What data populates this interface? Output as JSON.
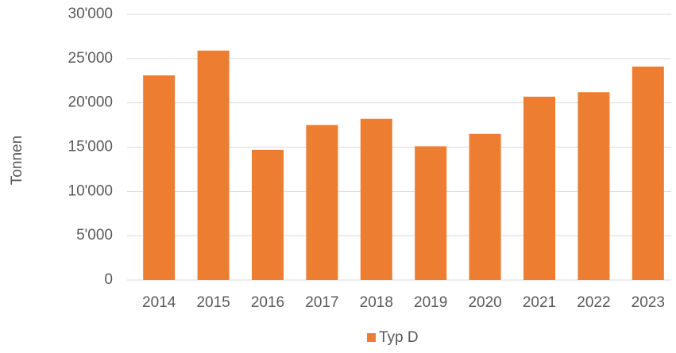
{
  "chart_data": {
    "type": "bar",
    "y_label": "Tonnen",
    "categories": [
      "2014",
      "2015",
      "2016",
      "2017",
      "2018",
      "2019",
      "2020",
      "2021",
      "2022",
      "2023"
    ],
    "series": [
      {
        "name": "Typ D",
        "color": "#ed7d31",
        "values": [
          23100,
          25900,
          14700,
          17500,
          18200,
          15100,
          16500,
          20700,
          21200,
          24100
        ]
      }
    ],
    "ylim": [
      0,
      30000
    ],
    "yticks": [
      0,
      {
        "value": 5000,
        "label": "5'000"
      },
      {
        "value": 10000,
        "label": "10'000"
      },
      {
        "value": 15000,
        "label": "15'000"
      },
      {
        "value": 20000,
        "label": "20'000"
      },
      {
        "value": 25000,
        "label": "25'000"
      },
      {
        "value": 30000,
        "label": "30'000"
      }
    ],
    "grid": true,
    "legend": "bottom"
  }
}
